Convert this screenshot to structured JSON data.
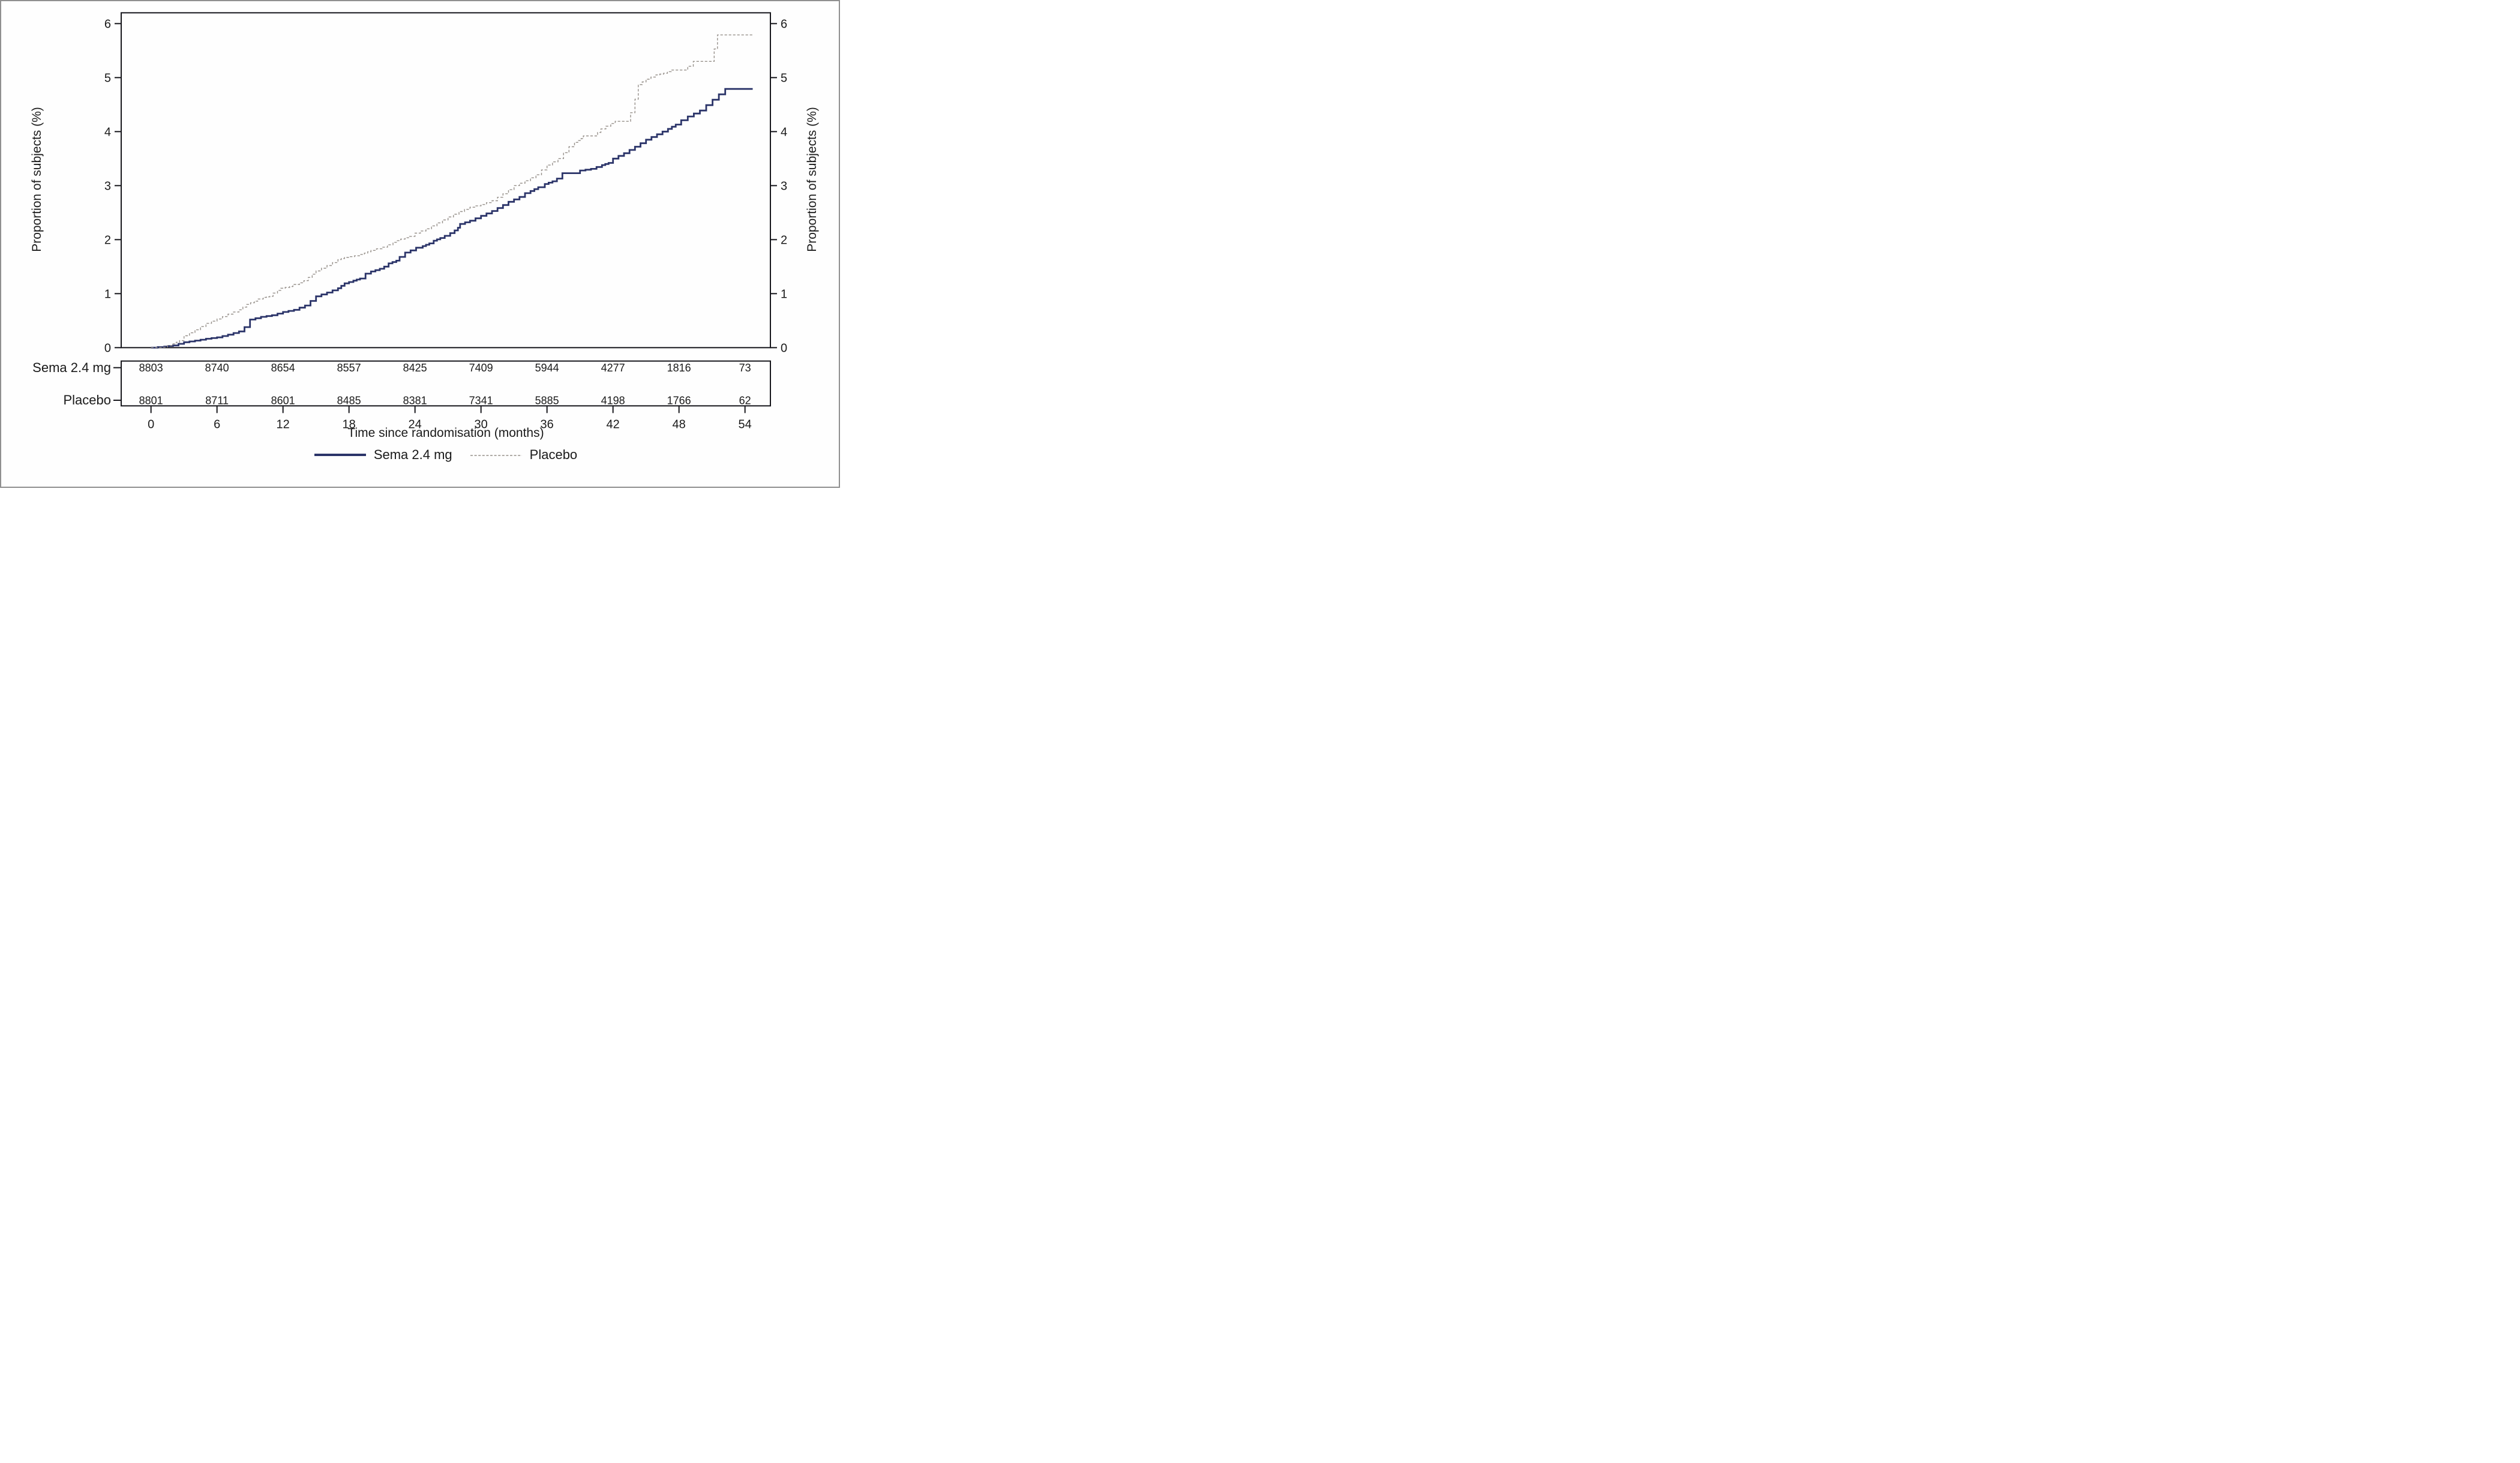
{
  "figure": {
    "border_color": "#8f8f8f",
    "background": "#fefefe",
    "axis_color": "#17171c",
    "text_color": "#1a1a1a"
  },
  "chart_data": {
    "type": "line",
    "subtype": "step-cumulative-incidence",
    "title": "",
    "xlabel": "Time since randomisation (months)",
    "ylabel": "Proportion of subjects (%)",
    "ylabel_right": "Proportion of subjects (%)",
    "xlim_months": [
      -2.7,
      56.4
    ],
    "ylim_percent": [
      0,
      6
    ],
    "x_ticks": [
      0,
      6,
      12,
      18,
      24,
      30,
      36,
      42,
      48,
      54
    ],
    "y_ticks": [
      0,
      1,
      2,
      3,
      4,
      5,
      6
    ],
    "grid": "off",
    "legend_position": "bottom-center",
    "series": [
      {
        "name": "Sema 2.4 mg",
        "color": "#2b3469",
        "line_style": "solid",
        "line_width": 2.8,
        "points_month_percent": [
          [
            0,
            0
          ],
          [
            1.2,
            0.02
          ],
          [
            2,
            0.04
          ],
          [
            3,
            0.1
          ],
          [
            4,
            0.13
          ],
          [
            5,
            0.165
          ],
          [
            6,
            0.19
          ],
          [
            7,
            0.24
          ],
          [
            8,
            0.3
          ],
          [
            8.5,
            0.38
          ],
          [
            9,
            0.52
          ],
          [
            10,
            0.57
          ],
          [
            11,
            0.6
          ],
          [
            12,
            0.66
          ],
          [
            13,
            0.7
          ],
          [
            14,
            0.78
          ],
          [
            15,
            0.95
          ],
          [
            16,
            1.02
          ],
          [
            17,
            1.1
          ],
          [
            17.6,
            1.19
          ],
          [
            18.4,
            1.24
          ],
          [
            19,
            1.28
          ],
          [
            19.5,
            1.37
          ],
          [
            20,
            1.41
          ],
          [
            20.8,
            1.46
          ],
          [
            21.2,
            1.5
          ],
          [
            21.6,
            1.56
          ],
          [
            22.3,
            1.61
          ],
          [
            22.6,
            1.68
          ],
          [
            23.1,
            1.76
          ],
          [
            23.6,
            1.8
          ],
          [
            24.1,
            1.85
          ],
          [
            24.7,
            1.88
          ],
          [
            25.3,
            1.93
          ],
          [
            25.7,
            1.98
          ],
          [
            26.3,
            2.03
          ],
          [
            26.7,
            2.07
          ],
          [
            27.2,
            2.12
          ],
          [
            27.6,
            2.17
          ],
          [
            27.9,
            2.22
          ],
          [
            28.1,
            2.29
          ],
          [
            29,
            2.35
          ],
          [
            30,
            2.44
          ],
          [
            31,
            2.53
          ],
          [
            32,
            2.64
          ],
          [
            32.5,
            2.7
          ],
          [
            33.5,
            2.79
          ],
          [
            34,
            2.86
          ],
          [
            34.5,
            2.9
          ],
          [
            35.2,
            2.97
          ],
          [
            35.8,
            3.03
          ],
          [
            36.5,
            3.08
          ],
          [
            36.9,
            3.13
          ],
          [
            37.4,
            3.23
          ],
          [
            38.6,
            3.23
          ],
          [
            39,
            3.28
          ],
          [
            40,
            3.31
          ],
          [
            41,
            3.38
          ],
          [
            41.6,
            3.42
          ],
          [
            42,
            3.5
          ],
          [
            43,
            3.6
          ],
          [
            44,
            3.72
          ],
          [
            45,
            3.85
          ],
          [
            46,
            3.95
          ],
          [
            47,
            4.05
          ],
          [
            47.7,
            4.13
          ],
          [
            48.2,
            4.21
          ],
          [
            48.8,
            4.28
          ],
          [
            49.9,
            4.39
          ],
          [
            52.2,
            4.79
          ],
          [
            54.7,
            4.79
          ]
        ]
      },
      {
        "name": "Placebo",
        "color": "#96908a",
        "line_style": "dashed",
        "line_width": 1.4,
        "points_month_percent": [
          [
            0,
            0
          ],
          [
            1,
            0.01
          ],
          [
            2,
            0.07
          ],
          [
            2.6,
            0.13
          ],
          [
            3,
            0.22
          ],
          [
            4,
            0.33
          ],
          [
            5,
            0.45
          ],
          [
            6,
            0.53
          ],
          [
            7,
            0.62
          ],
          [
            8,
            0.7
          ],
          [
            8.7,
            0.8
          ],
          [
            9.4,
            0.86
          ],
          [
            9.7,
            0.9
          ],
          [
            10.2,
            0.93
          ],
          [
            10.8,
            0.95
          ],
          [
            11.1,
            1.01
          ],
          [
            11.5,
            1.06
          ],
          [
            11.8,
            1.1
          ],
          [
            12.6,
            1.13
          ],
          [
            12.9,
            1.17
          ],
          [
            13.5,
            1.2
          ],
          [
            13.9,
            1.24
          ],
          [
            14.3,
            1.3
          ],
          [
            15,
            1.42
          ],
          [
            16,
            1.52
          ],
          [
            17,
            1.63
          ],
          [
            17.6,
            1.67
          ],
          [
            18.5,
            1.7
          ],
          [
            19.4,
            1.75
          ],
          [
            20,
            1.8
          ],
          [
            21,
            1.86
          ],
          [
            22,
            1.95
          ],
          [
            22.7,
            2.01
          ],
          [
            23.5,
            2.06
          ],
          [
            24,
            2.12
          ],
          [
            25,
            2.2
          ],
          [
            26,
            2.31
          ],
          [
            27,
            2.42
          ],
          [
            28,
            2.52
          ],
          [
            29,
            2.6
          ],
          [
            30,
            2.65
          ],
          [
            31,
            2.72
          ],
          [
            32,
            2.85
          ],
          [
            33,
            3.0
          ],
          [
            34,
            3.09
          ],
          [
            35,
            3.2
          ],
          [
            36,
            3.38
          ],
          [
            37,
            3.5
          ],
          [
            38,
            3.72
          ],
          [
            38.5,
            3.8
          ],
          [
            39.1,
            3.87
          ],
          [
            39.3,
            3.92
          ],
          [
            40.3,
            3.92
          ],
          [
            40.9,
            4.05
          ],
          [
            41.8,
            4.15
          ],
          [
            42.2,
            4.19
          ],
          [
            43.2,
            4.19
          ],
          [
            43.6,
            4.35
          ],
          [
            44,
            4.6
          ],
          [
            44.3,
            4.87
          ],
          [
            45,
            4.97
          ],
          [
            45.9,
            5.05
          ],
          [
            46.6,
            5.08
          ],
          [
            47.3,
            5.14
          ],
          [
            48.6,
            5.14
          ],
          [
            48.8,
            5.21
          ],
          [
            49.3,
            5.3
          ],
          [
            51.1,
            5.3
          ],
          [
            51.2,
            5.53
          ],
          [
            51.5,
            5.79
          ],
          [
            54.7,
            5.79
          ]
        ]
      }
    ],
    "risk_table": {
      "times_months": [
        0,
        6,
        12,
        18,
        24,
        30,
        36,
        42,
        48,
        54
      ],
      "rows": [
        {
          "label": "Sema 2.4 mg",
          "values": [
            8803,
            8740,
            8654,
            8557,
            8425,
            7409,
            5944,
            4277,
            1816,
            73
          ]
        },
        {
          "label": "Placebo",
          "values": [
            8801,
            8711,
            8601,
            8485,
            8381,
            7341,
            5885,
            4198,
            1766,
            62
          ]
        }
      ]
    }
  }
}
